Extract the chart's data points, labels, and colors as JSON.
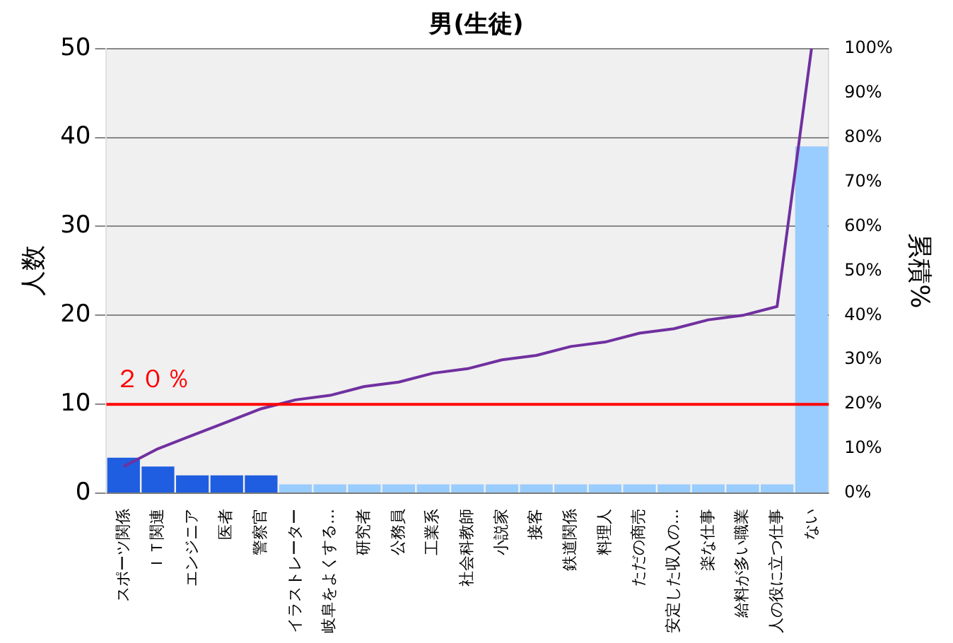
{
  "chart_data": {
    "type": "bar",
    "title": "男(生徒)",
    "ylabel": "人数",
    "y2label": "累積%",
    "categories": [
      "スポーツ関係",
      "ＩＴ関連",
      "エンジニア",
      "医者",
      "警察官",
      "イラストレーター",
      "岐阜をよくする…",
      "研究者",
      "公務員",
      "工業系",
      "社会科教師",
      "小説家",
      "接客",
      "鉄道関係",
      "料理人",
      "ただの商売",
      "安定した収入の…",
      "楽な仕事",
      "給料が多い職業",
      "人の役に立つ仕事",
      "ない"
    ],
    "series": [
      {
        "colors": [
          "#1f5ee0",
          "#1f5ee0",
          "#1f5ee0",
          "#1f5ee0",
          "#1f5ee0",
          "#99ccff",
          "#99ccff",
          "#99ccff",
          "#99ccff",
          "#99ccff",
          "#99ccff",
          "#99ccff",
          "#99ccff",
          "#99ccff",
          "#99ccff",
          "#99ccff",
          "#99ccff",
          "#99ccff",
          "#99ccff",
          "#99ccff",
          "#99ccff"
        ],
        "values": [
          4,
          3,
          2,
          2,
          2,
          1,
          1,
          1,
          1,
          1,
          1,
          1,
          1,
          1,
          1,
          1,
          1,
          1,
          1,
          1,
          39
        ]
      },
      {
        "type": "line",
        "axis": "y2",
        "color": "#7030a0",
        "values": [
          6,
          10,
          13,
          16,
          19,
          21,
          22,
          24,
          25,
          27,
          28,
          30,
          31,
          33,
          34,
          36,
          37,
          39,
          40,
          42,
          100
        ]
      }
    ],
    "ylim": [
      0,
      50
    ],
    "yticks": [
      0,
      10,
      20,
      30,
      40,
      50
    ],
    "y2lim": [
      0,
      100
    ],
    "y2ticks": [
      {
        "value": 0,
        "label": "0%"
      },
      {
        "value": 10,
        "label": "10%"
      },
      {
        "value": 20,
        "label": "20%"
      },
      {
        "value": 30,
        "label": "30%"
      },
      {
        "value": 40,
        "label": "40%"
      },
      {
        "value": 50,
        "label": "50%"
      },
      {
        "value": 60,
        "label": "60%"
      },
      {
        "value": 70,
        "label": "70%"
      },
      {
        "value": 80,
        "label": "80%"
      },
      {
        "value": 90,
        "label": "90%"
      },
      {
        "value": 100,
        "label": "100%"
      }
    ],
    "ref_lines": [
      {
        "axis": "y",
        "value": 10,
        "label": "２０％",
        "color": "#ff0000"
      }
    ],
    "grid": "y",
    "legend": false,
    "marker": "none",
    "line_style": "solid"
  }
}
